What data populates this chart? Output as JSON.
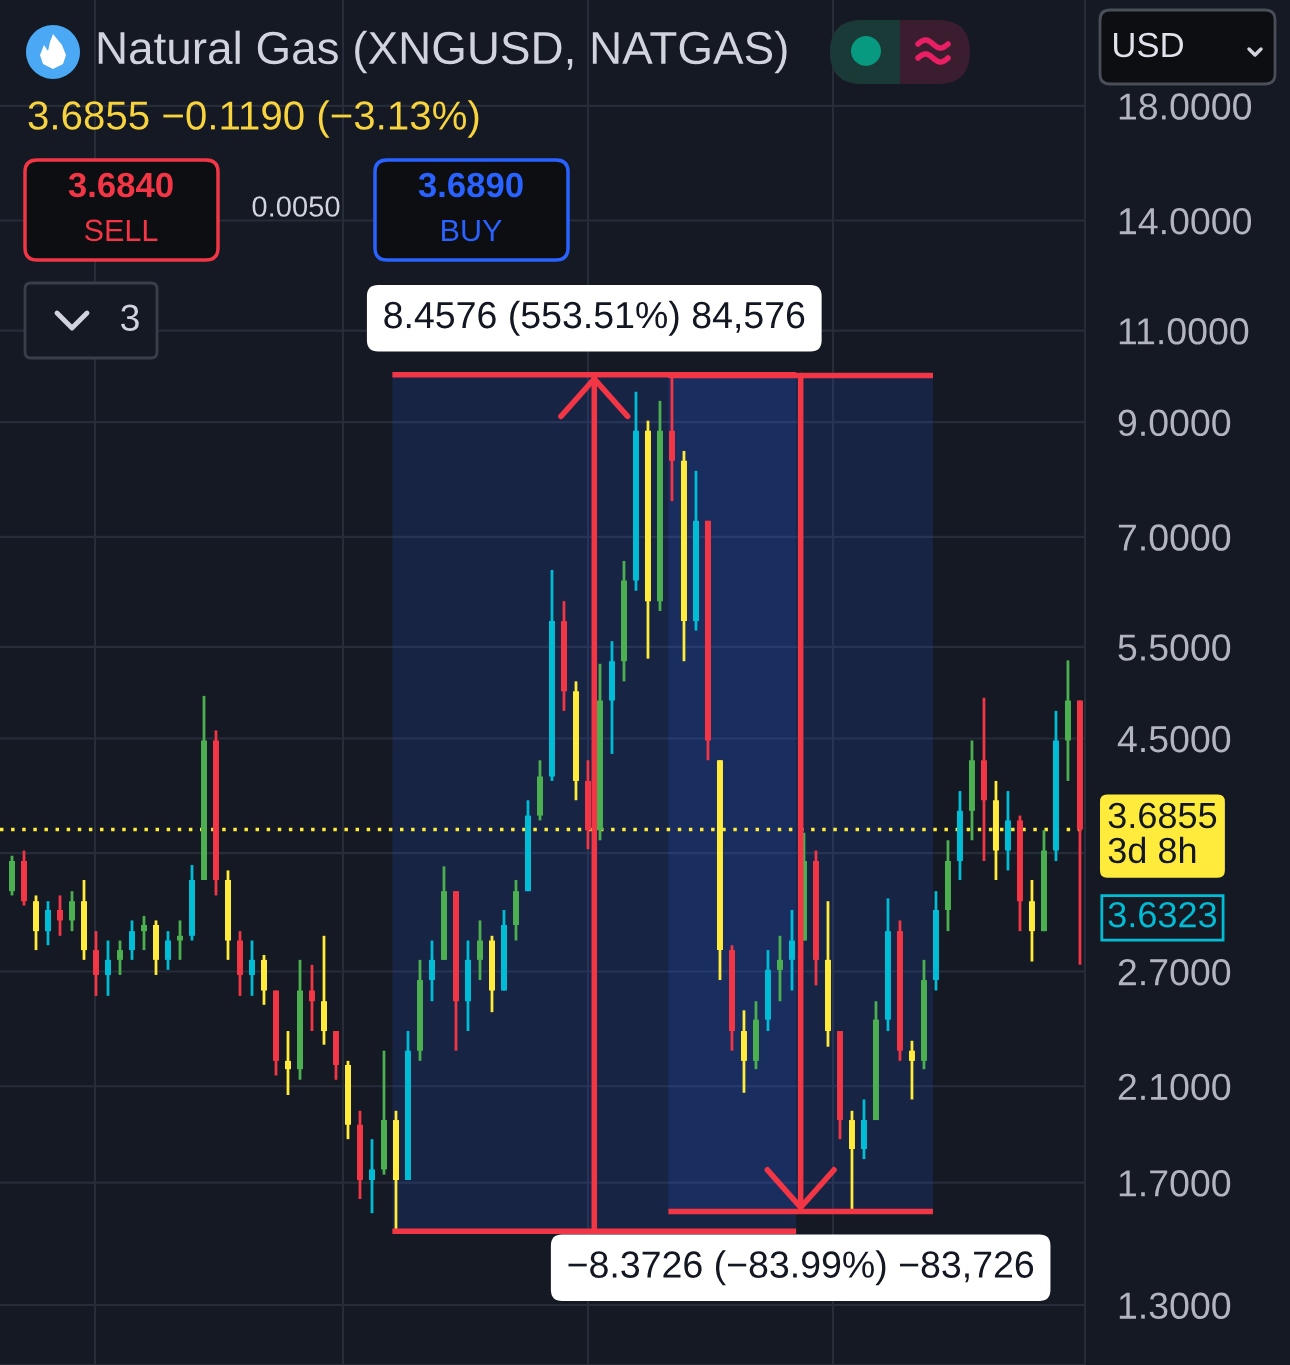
{
  "chart_data": {
    "type": "candlestick",
    "title": "Natural Gas (XNGUSD, NATGAS)",
    "subtitle": "3.6855 −0.1190 (−3.13%)",
    "categories": [
      null,
      null,
      null,
      null,
      null,
      null,
      null,
      null,
      null,
      null,
      null,
      null,
      null,
      null,
      null,
      null,
      null,
      null,
      null,
      null,
      null,
      null,
      null,
      null,
      null,
      null,
      null,
      null,
      null,
      null,
      null,
      null,
      null,
      null,
      null,
      null,
      null,
      null,
      null,
      null,
      null,
      null,
      null,
      null,
      null,
      null,
      null,
      null,
      null,
      null,
      null,
      null,
      null,
      null,
      null,
      null,
      null,
      null,
      null,
      null,
      null,
      null,
      null,
      null,
      null,
      null,
      null,
      null,
      null,
      null,
      null,
      null,
      null,
      null,
      null,
      null,
      null,
      null,
      null,
      null,
      null,
      null,
      null,
      null,
      null,
      null,
      null,
      null,
      null,
      null
    ],
    "ohlc": [
      [
        3.22,
        3.48,
        3.19,
        3.44
      ],
      [
        3.44,
        3.52,
        3.12,
        3.15
      ],
      [
        3.15,
        3.19,
        2.83,
        2.95
      ],
      [
        2.95,
        3.15,
        2.86,
        3.09
      ],
      [
        3.09,
        3.19,
        2.92,
        3.02
      ],
      [
        3.02,
        3.22,
        2.95,
        3.15
      ],
      [
        3.15,
        3.3,
        2.77,
        2.83
      ],
      [
        2.83,
        2.95,
        2.56,
        2.68
      ],
      [
        2.68,
        2.89,
        2.56,
        2.77
      ],
      [
        2.77,
        2.89,
        2.68,
        2.83
      ],
      [
        2.83,
        3.02,
        2.77,
        2.95
      ],
      [
        2.95,
        3.05,
        2.83,
        2.99
      ],
      [
        2.99,
        3.02,
        2.68,
        2.77
      ],
      [
        2.77,
        2.95,
        2.71,
        2.89
      ],
      [
        2.89,
        3.02,
        2.77,
        2.92
      ],
      [
        2.92,
        3.41,
        2.89,
        3.3
      ],
      [
        3.3,
        4.94,
        3.3,
        4.48
      ],
      [
        4.48,
        4.58,
        3.19,
        3.3
      ],
      [
        3.3,
        3.37,
        2.77,
        2.89
      ],
      [
        2.89,
        2.95,
        2.56,
        2.68
      ],
      [
        2.68,
        2.89,
        2.56,
        2.77
      ],
      [
        2.77,
        2.8,
        2.51,
        2.59
      ],
      [
        2.59,
        2.59,
        2.15,
        2.22
      ],
      [
        2.22,
        2.37,
        2.06,
        2.18
      ],
      [
        2.18,
        2.77,
        2.13,
        2.59
      ],
      [
        2.59,
        2.74,
        2.37,
        2.53
      ],
      [
        2.53,
        2.92,
        2.3,
        2.37
      ],
      [
        2.37,
        2.37,
        2.13,
        2.2
      ],
      [
        2.2,
        2.22,
        1.87,
        1.93
      ],
      [
        1.93,
        1.99,
        1.64,
        1.71
      ],
      [
        1.71,
        1.87,
        1.59,
        1.75
      ],
      [
        1.75,
        2.27,
        1.73,
        1.95
      ],
      [
        1.95,
        1.99,
        1.528,
        1.71
      ],
      [
        1.71,
        2.37,
        1.71,
        2.27
      ],
      [
        2.27,
        2.77,
        2.22,
        2.65
      ],
      [
        2.65,
        2.89,
        2.53,
        2.77
      ],
      [
        2.77,
        3.4,
        2.77,
        3.22
      ],
      [
        3.22,
        3.22,
        2.27,
        2.53
      ],
      [
        2.53,
        2.89,
        2.37,
        2.77
      ],
      [
        2.77,
        3.02,
        2.65,
        2.89
      ],
      [
        2.89,
        2.92,
        2.47,
        2.59
      ],
      [
        2.59,
        3.09,
        2.59,
        2.99
      ],
      [
        2.99,
        3.3,
        2.89,
        3.22
      ],
      [
        3.22,
        3.93,
        3.22,
        3.8
      ],
      [
        3.8,
        4.29,
        3.76,
        4.14
      ],
      [
        4.14,
        6.51,
        4.1,
        5.82
      ],
      [
        5.82,
        6.08,
        4.78,
        4.99
      ],
      [
        4.99,
        5.1,
        3.93,
        4.1
      ],
      [
        4.1,
        4.29,
        3.53,
        3.68
      ],
      [
        3.68,
        5.3,
        3.6,
        4.89
      ],
      [
        4.89,
        5.57,
        4.35,
        5.33
      ],
      [
        5.33,
        6.64,
        5.1,
        6.36
      ],
      [
        6.36,
        9.62,
        6.22,
        8.83
      ],
      [
        8.83,
        9.03,
        5.36,
        6.08
      ],
      [
        6.08,
        9.43,
        5.95,
        8.83
      ],
      [
        8.83,
        9.986,
        7.57,
        8.27
      ],
      [
        8.27,
        8.45,
        5.33,
        5.82
      ],
      [
        5.82,
        8.09,
        5.7,
        7.25
      ],
      [
        7.25,
        7.25,
        4.29,
        4.48
      ],
      [
        4.29,
        4.29,
        2.65,
        2.83
      ],
      [
        2.83,
        2.86,
        2.27,
        2.37
      ],
      [
        2.37,
        2.48,
        2.07,
        2.22
      ],
      [
        2.22,
        2.53,
        2.18,
        2.43
      ],
      [
        2.43,
        2.83,
        2.37,
        2.71
      ],
      [
        2.71,
        2.92,
        2.53,
        2.77
      ],
      [
        2.77,
        3.09,
        2.59,
        2.89
      ],
      [
        2.89,
        3.66,
        2.89,
        3.44
      ],
      [
        3.44,
        3.52,
        2.62,
        2.77
      ],
      [
        2.77,
        3.15,
        2.29,
        2.37
      ],
      [
        2.37,
        2.37,
        1.87,
        1.95
      ],
      [
        1.95,
        1.99,
        1.596,
        1.83
      ],
      [
        1.83,
        2.04,
        1.79,
        1.95
      ],
      [
        1.95,
        2.53,
        1.95,
        2.43
      ],
      [
        2.43,
        3.17,
        2.37,
        2.95
      ],
      [
        2.95,
        3.02,
        2.22,
        2.27
      ],
      [
        2.27,
        2.32,
        2.04,
        2.22
      ],
      [
        2.22,
        2.77,
        2.18,
        2.65
      ],
      [
        2.65,
        3.22,
        2.59,
        3.09
      ],
      [
        3.09,
        3.6,
        2.95,
        3.44
      ],
      [
        3.44,
        4.01,
        3.3,
        3.84
      ],
      [
        3.84,
        4.48,
        3.6,
        4.29
      ],
      [
        4.29,
        4.92,
        3.44,
        3.93
      ],
      [
        3.93,
        4.1,
        3.3,
        3.52
      ],
      [
        3.52,
        4.01,
        3.37,
        3.76
      ],
      [
        3.76,
        3.8,
        2.95,
        3.15
      ],
      [
        3.15,
        3.3,
        2.76,
        2.95
      ],
      [
        2.95,
        3.68,
        2.95,
        3.52
      ],
      [
        3.52,
        4.78,
        3.44,
        4.48
      ],
      [
        4.48,
        5.34,
        4.1,
        4.89
      ],
      [
        4.89,
        4.89,
        2.74,
        3.6855
      ]
    ],
    "colors": [
      "#4caf50",
      "#f23645",
      "#ffeb3b",
      "#00bcd4",
      "#f23645",
      "#4caf50",
      "#ffeb3b",
      "#f23645",
      "#00bcd4",
      "#4caf50",
      "#00bcd4",
      "#4caf50",
      "#ffeb3b",
      "#00bcd4",
      "#4caf50",
      "#00bcd4",
      "#4caf50",
      "#f23645",
      "#ffeb3b",
      "#f23645",
      "#00bcd4",
      "#ffeb3b",
      "#f23645",
      "#ffeb3b",
      "#4caf50",
      "#f23645",
      "#ffeb3b",
      "#f23645",
      "#ffeb3b",
      "#f23645",
      "#00bcd4",
      "#4caf50",
      "#ffeb3b",
      "#00bcd4",
      "#4caf50",
      "#00bcd4",
      "#4caf50",
      "#f23645",
      "#00bcd4",
      "#4caf50",
      "#ffeb3b",
      "#00bcd4",
      "#4caf50",
      "#00bcd4",
      "#4caf50",
      "#00bcd4",
      "#f23645",
      "#ffeb3b",
      "#f23645",
      "#4caf50",
      "#00bcd4",
      "#4caf50",
      "#00bcd4",
      "#ffeb3b",
      "#4caf50",
      "#f23645",
      "#ffeb3b",
      "#00bcd4",
      "#f23645",
      "#ffeb3b",
      "#f23645",
      "#ffeb3b",
      "#4caf50",
      "#00bcd4",
      "#4caf50",
      "#00bcd4",
      "#4caf50",
      "#f23645",
      "#ffeb3b",
      "#f23645",
      "#ffeb3b",
      "#00bcd4",
      "#4caf50",
      "#00bcd4",
      "#f23645",
      "#ffeb3b",
      "#4caf50",
      "#00bcd4",
      "#4caf50",
      "#00bcd4",
      "#4caf50",
      "#f23645",
      "#ffeb3b",
      "#00bcd4",
      "#f23645",
      "#ffeb3b",
      "#4caf50",
      "#00bcd4",
      "#4caf50",
      "#f23645"
    ],
    "log": true,
    "ylim": [
      1.14,
      22.7
    ],
    "yticks": [
      {
        "value": 1.3,
        "label": "1.3000"
      },
      {
        "value": 1.7,
        "label": "1.7000"
      },
      {
        "value": 2.1,
        "label": "2.1000"
      },
      {
        "value": 2.7,
        "label": "2.7000"
      },
      {
        "value": 3.5,
        "label": null
      },
      {
        "value": 4.5,
        "label": "4.5000"
      },
      {
        "value": 5.5,
        "label": "5.5000"
      },
      {
        "value": 7,
        "label": "7.0000"
      },
      {
        "value": 9,
        "label": "9.0000"
      },
      {
        "value": 11,
        "label": "11.0000"
      },
      {
        "value": 14,
        "label": "14.0000"
      },
      {
        "value": 18,
        "label": "18.0000"
      }
    ],
    "grid": true,
    "tick_labels": "y",
    "ref_lines": [
      {
        "axis": "y",
        "value": 3.6855,
        "label": "3.6855\n3d 8h",
        "color": "#ffeb3b",
        "line_style": "dotted"
      }
    ],
    "bands": [
      {
        "axis": "y",
        "from": 1.528,
        "to": 9.986,
        "label": "8.4576 (553.51%) 84,576",
        "color": "#2962ff"
      },
      {
        "axis": "y",
        "from": 9.969,
        "to": 1.596,
        "label": "−8.3726 (−83.99%) −83,726",
        "color": "#2962ff"
      }
    ],
    "annotations": [
      "3.6840",
      "SELL",
      "0.0050",
      "3.6890",
      "BUY",
      "3",
      "USD",
      "3.6323"
    ]
  }
}
